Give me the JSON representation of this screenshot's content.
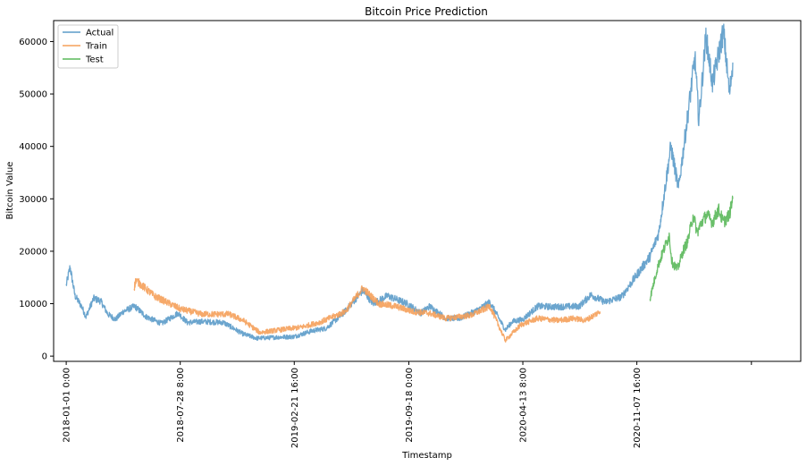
{
  "chart_data": {
    "type": "line",
    "title": "Bitcoin Price Prediction",
    "xlabel": "Timestamp",
    "ylabel": "Bitcoin Value",
    "ylim": [
      -1000,
      64000
    ],
    "xlim": [
      "2017-12-09",
      "2021-09-02"
    ],
    "y_ticks": [
      0,
      10000,
      20000,
      30000,
      40000,
      50000,
      60000
    ],
    "x_ticks": [
      {
        "date": "2018-01-01",
        "label": "2018-01-01 0:00"
      },
      {
        "date": "2018-07-28",
        "label": "2018-07-28 8:00"
      },
      {
        "date": "2019-02-21",
        "label": "2019-02-21 16:00"
      },
      {
        "date": "2019-09-18",
        "label": "2019-09-18 0:00"
      },
      {
        "date": "2020-04-13",
        "label": "2020-04-13 8:00"
      },
      {
        "date": "2020-11-07",
        "label": "2020-11-07 16:00"
      },
      {
        "date": "2021-06-04",
        "label": ""
      }
    ],
    "grid": false,
    "legend_position": "top-left",
    "series": [
      {
        "name": "Actual",
        "color": "#5b9bc9",
        "x": [
          "2018-01-01",
          "2018-01-08",
          "2018-01-17",
          "2018-01-29",
          "2018-02-06",
          "2018-02-20",
          "2018-03-05",
          "2018-03-18",
          "2018-04-01",
          "2018-04-15",
          "2018-05-06",
          "2018-05-27",
          "2018-06-24",
          "2018-07-24",
          "2018-08-10",
          "2018-09-05",
          "2018-10-15",
          "2018-11-20",
          "2018-12-15",
          "2019-01-20",
          "2019-02-20",
          "2019-03-25",
          "2019-04-20",
          "2019-05-20",
          "2019-06-26",
          "2019-07-15",
          "2019-08-10",
          "2019-09-15",
          "2019-10-10",
          "2019-10-26",
          "2019-11-25",
          "2019-12-20",
          "2020-01-20",
          "2020-02-13",
          "2020-03-12",
          "2020-03-25",
          "2020-04-13",
          "2020-05-10",
          "2020-06-10",
          "2020-07-25",
          "2020-08-15",
          "2020-09-10",
          "2020-10-10",
          "2020-11-07",
          "2020-12-01",
          "2020-12-17",
          "2021-01-08",
          "2021-01-22",
          "2021-02-08",
          "2021-02-21",
          "2021-02-28",
          "2021-03-13",
          "2021-03-25",
          "2021-04-14",
          "2021-04-25",
          "2021-05-01"
        ],
        "values": [
          13500,
          17000,
          11500,
          9500,
          7500,
          11000,
          10500,
          8000,
          7000,
          8500,
          9500,
          7500,
          6200,
          8200,
          6400,
          6600,
          6400,
          4200,
          3400,
          3600,
          3700,
          4800,
          5300,
          8000,
          12500,
          10000,
          11500,
          10000,
          8200,
          9500,
          7200,
          7200,
          8700,
          10300,
          5000,
          6600,
          7000,
          9500,
          9400,
          9500,
          11700,
          10300,
          11300,
          15500,
          19000,
          23500,
          40000,
          32000,
          46000,
          57000,
          45000,
          61000,
          52000,
          62000,
          50000,
          56000
        ]
      },
      {
        "name": "Train",
        "color": "#f5a05a",
        "x": [
          "2018-05-05",
          "2018-05-08",
          "2018-06-10",
          "2018-07-28",
          "2018-09-05",
          "2018-10-25",
          "2018-11-20",
          "2018-12-20",
          "2019-01-25",
          "2019-03-05",
          "2019-04-10",
          "2019-05-25",
          "2019-06-26",
          "2019-07-25",
          "2019-08-25",
          "2019-09-25",
          "2019-10-25",
          "2019-11-25",
          "2020-01-10",
          "2020-02-13",
          "2020-03-12",
          "2020-04-10",
          "2020-05-10",
          "2020-06-15",
          "2020-07-15",
          "2020-08-05",
          "2020-09-01"
        ],
        "values": [
          13000,
          14500,
          11500,
          9000,
          8000,
          8000,
          6800,
          4500,
          5000,
          5500,
          6500,
          8500,
          13000,
          10000,
          9500,
          8500,
          8200,
          7200,
          7800,
          9500,
          3000,
          6000,
          7200,
          6800,
          7200,
          6800,
          8500
        ]
      },
      {
        "name": "Test",
        "color": "#5ab85a",
        "x": [
          "2020-12-01",
          "2020-12-08",
          "2020-12-15",
          "2020-12-25",
          "2021-01-05",
          "2021-01-10",
          "2021-01-20",
          "2021-01-30",
          "2021-02-08",
          "2021-02-18",
          "2021-02-25",
          "2021-03-05",
          "2021-03-15",
          "2021-03-25",
          "2021-04-05",
          "2021-04-14",
          "2021-04-25",
          "2021-05-01"
        ],
        "values": [
          11000,
          14000,
          17000,
          20000,
          23000,
          18000,
          16500,
          20000,
          22000,
          27000,
          23500,
          25500,
          27000,
          25500,
          28000,
          25500,
          27000,
          30000
        ]
      }
    ]
  }
}
